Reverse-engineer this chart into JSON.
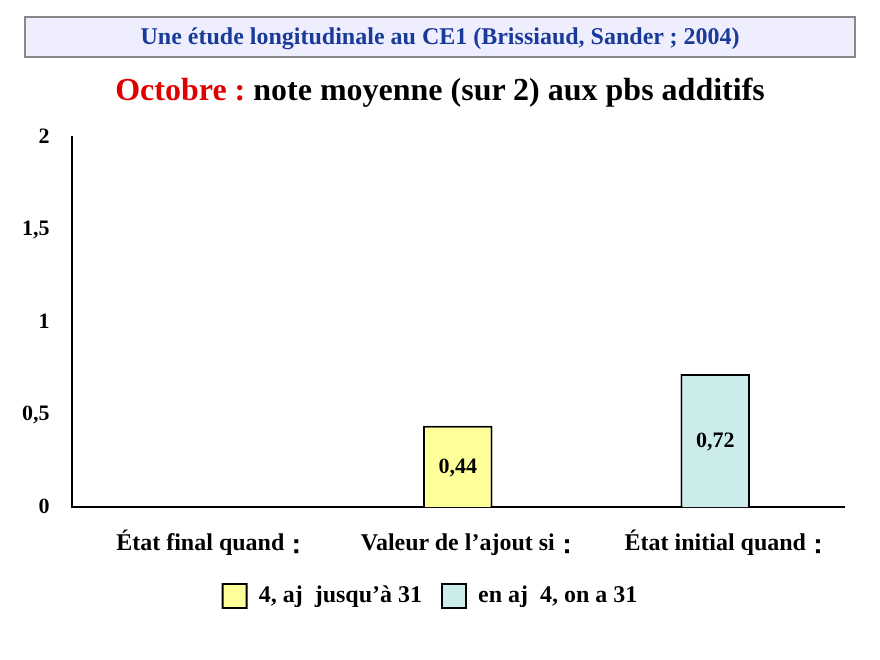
{
  "chart_data": {
    "type": "bar",
    "title": "Octobre : note moyenne (sur 2) aux pbs additifs",
    "annotations": [
      "Une étude longitudinale au CE1 (Brissiaud, Sander ; 2004)"
    ],
    "categories": [
      "État final quand",
      "Valeur de l’ajout si",
      "État initial quand"
    ],
    "series": [
      {
        "name": "4, aj  jusqu’à 31",
        "color": "#ffff99",
        "values": [
          null,
          0.44,
          null
        ],
        "value_labels": [
          null,
          "0,44",
          null
        ]
      },
      {
        "name": "en aj  4, on a 31",
        "color": "#ccecec",
        "values": [
          null,
          null,
          0.72
        ],
        "value_labels": [
          null,
          null,
          "0,72"
        ]
      }
    ],
    "ylim": [
      0,
      2
    ],
    "yticks": [
      0,
      {
        "value": 0.5,
        "label": "0,5"
      },
      1,
      {
        "value": 1.5,
        "label": "1,5"
      },
      2
    ],
    "grid": false,
    "legend": "bottom"
  }
}
